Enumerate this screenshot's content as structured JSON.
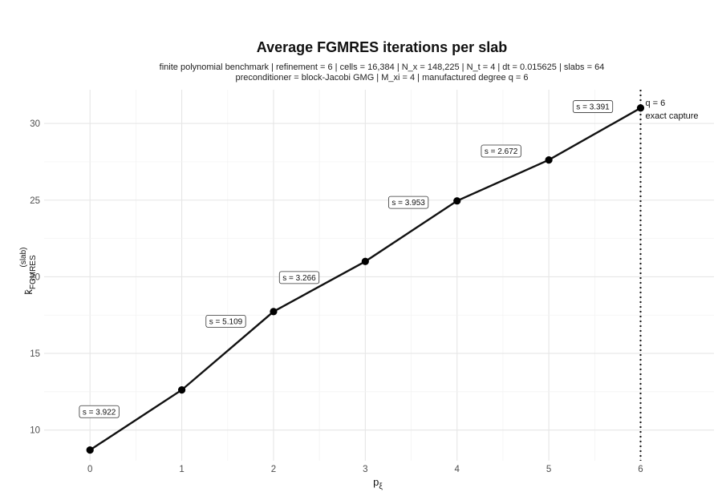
{
  "chart_data": {
    "type": "line",
    "title": "Average FGMRES iterations per slab",
    "subtitle_lines": [
      "finite polynomial benchmark | refinement = 6 | cells = 16,384 | N_x = 148,225 | N_t = 4 | dt = 0.015625 | slabs = 64",
      "preconditioner = block-Jacobi GMG | M_xi = 4 | manufactured degree q = 6"
    ],
    "xlabel": "p",
    "xlabel_sub": "ξ",
    "ylabel": "k̄",
    "ylabel_sup": "(slab)",
    "ylabel_sub": "FGMRES",
    "xlim": [
      -0.5,
      6.8
    ],
    "ylim": [
      8.0,
      32.2
    ],
    "xticks": [
      0,
      1,
      2,
      3,
      4,
      5,
      6
    ],
    "yticks": [
      10,
      15,
      20,
      25,
      30
    ],
    "grid": true,
    "x": [
      0,
      1,
      2,
      3,
      4,
      5,
      6
    ],
    "y": [
      8.7,
      12.62,
      17.73,
      21.0,
      24.95,
      27.62,
      31.01
    ],
    "segment_slope_labels": [
      {
        "text": "s = 3.922",
        "x": 0.1,
        "y": 11.2
      },
      {
        "text": "s = 5.109",
        "x": 1.48,
        "y": 17.1
      },
      {
        "text": "s = 3.266",
        "x": 2.28,
        "y": 19.95
      },
      {
        "text": "s = 3.953",
        "x": 3.47,
        "y": 24.85
      },
      {
        "text": "s = 2.672",
        "x": 4.48,
        "y": 28.2
      },
      {
        "text": "s = 3.391",
        "x": 5.48,
        "y": 31.1
      }
    ],
    "reference_line": {
      "x": 6,
      "label": "q = 6",
      "sublabel": "exact capture"
    }
  }
}
